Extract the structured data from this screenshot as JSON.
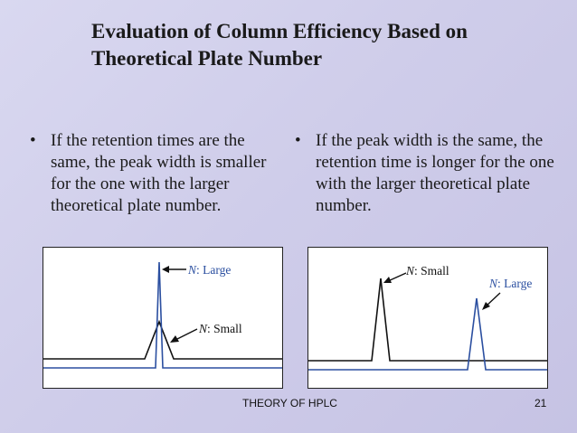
{
  "title_line1": "Evaluation of Column Efficiency Based on",
  "title_line2": "Theoretical Plate Number",
  "bullet_symbol": "•",
  "left_bullet": "If the retention times are the same, the peak width is smaller for the one with the larger theoretical plate number.",
  "right_bullet": "If the peak width is the same, the retention time is longer for the one with the larger theoretical plate number.",
  "left_diagram": {
    "label_large_n": "N",
    "label_large_rest": ": Large",
    "label_small_n": "N",
    "label_small_rest": ": Small"
  },
  "right_diagram": {
    "label_small_n": "N",
    "label_small_rest": ": Small",
    "label_large_n": "N",
    "label_large_rest": ": Large"
  },
  "footer_text": "THEORY OF HPLC",
  "page_number": "21",
  "colors": {
    "large": "#2b4fa0",
    "small": "#111111"
  }
}
